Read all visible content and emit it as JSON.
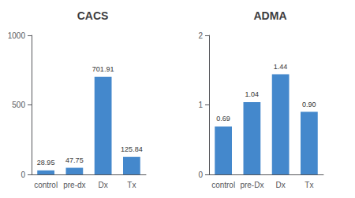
{
  "chart_data": [
    {
      "type": "bar",
      "title": "CACS",
      "categories": [
        "control",
        "pre-dx",
        "Dx",
        "Tx"
      ],
      "values": [
        28.95,
        47.75,
        701.91,
        125.84
      ],
      "color": "#4488cc",
      "ylim": [
        0,
        1000
      ],
      "yticks": [
        0,
        500,
        1000
      ],
      "grid": false,
      "data_labels": true
    },
    {
      "type": "bar",
      "title": "ADMA",
      "categories": [
        "control",
        "pre-Dx",
        "Dx",
        "Tx"
      ],
      "values": [
        0.69,
        1.04,
        1.44,
        0.9
      ],
      "value_labels": [
        "0.69",
        "1.04",
        "1.44",
        "0.90"
      ],
      "color": "#4488cc",
      "ylim": [
        0,
        2
      ],
      "yticks": [
        0,
        1,
        2
      ],
      "grid": false,
      "data_labels": true
    }
  ]
}
